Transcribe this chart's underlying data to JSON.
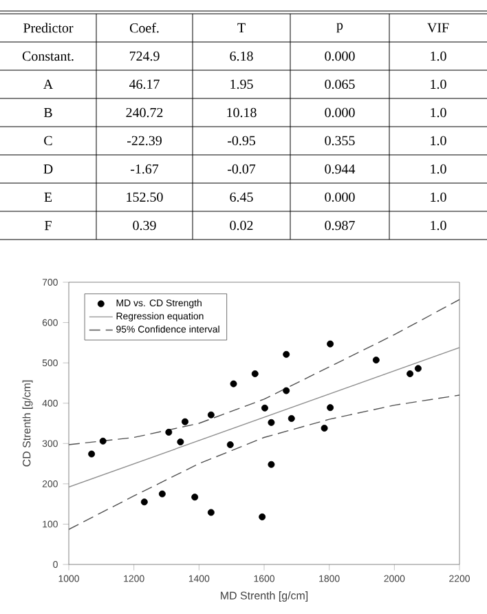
{
  "chart_data": {
    "type": "scatter",
    "xlabel": "MD Strenth [g/cm]",
    "ylabel": "CD Strenth [g/cm]",
    "xlim": [
      1000,
      2200
    ],
    "ylim": [
      0,
      700
    ],
    "xticks": [
      1000,
      1200,
      1400,
      1600,
      1800,
      2000,
      2200
    ],
    "yticks": [
      0,
      100,
      200,
      300,
      400,
      500,
      600,
      700
    ],
    "legend": "top left",
    "grid": false,
    "series": [
      {
        "name": "MD vs. CD Strength",
        "marker": "circle",
        "color": "#000000",
        "x": [
          1070,
          1105,
          1232,
          1287,
          1307,
          1343,
          1357,
          1387,
          1437,
          1437,
          1496,
          1506,
          1572,
          1594,
          1602,
          1622,
          1622,
          1668,
          1668,
          1684,
          1785,
          1803,
          1803,
          1944,
          2048,
          2073
        ],
        "values": [
          274,
          306,
          155,
          175,
          328,
          304,
          354,
          167,
          129,
          371,
          297,
          448,
          473,
          118,
          388,
          352,
          248,
          521,
          431,
          362,
          338,
          547,
          389,
          507,
          473,
          486
        ]
      },
      {
        "name": "Regression equation",
        "type": "line",
        "line_style": "solid",
        "color": "#909090",
        "x": [
          1000,
          2200
        ],
        "values": [
          192,
          538
        ]
      },
      {
        "name": "95% Confidence interval",
        "type": "line",
        "line_style": "dashed",
        "color": "#505050",
        "x": [
          1000,
          1200,
          1400,
          1600,
          1800,
          2000,
          2200
        ],
        "values": [
          297,
          315,
          350,
          410,
          490,
          570,
          657
        ]
      },
      {
        "type": "line",
        "line_style": "dashed",
        "color": "#505050",
        "x": [
          1000,
          1200,
          1400,
          1600,
          1800,
          2000,
          2200
        ],
        "values": [
          87,
          170,
          250,
          315,
          360,
          395,
          420
        ]
      }
    ],
    "annotations": [
      "Predictor",
      "Coef.",
      "T",
      "p",
      "VIF",
      "Constant.",
      "724.9",
      "6.18",
      "0.000",
      "1.0",
      "A",
      "46.17",
      "1.95",
      "0.065",
      "1.0",
      "B",
      "240.72",
      "10.18",
      "0.000",
      "1.0",
      "C",
      "-22.39",
      "-0.95",
      "0.355",
      "1.0",
      "D",
      "-1.67",
      "-0.07",
      "0.944",
      "1.0",
      "E",
      "152.50",
      "6.45",
      "0.000",
      "1.0",
      "F",
      "0.39",
      "0.02",
      "0.987",
      "1.0"
    ]
  }
}
